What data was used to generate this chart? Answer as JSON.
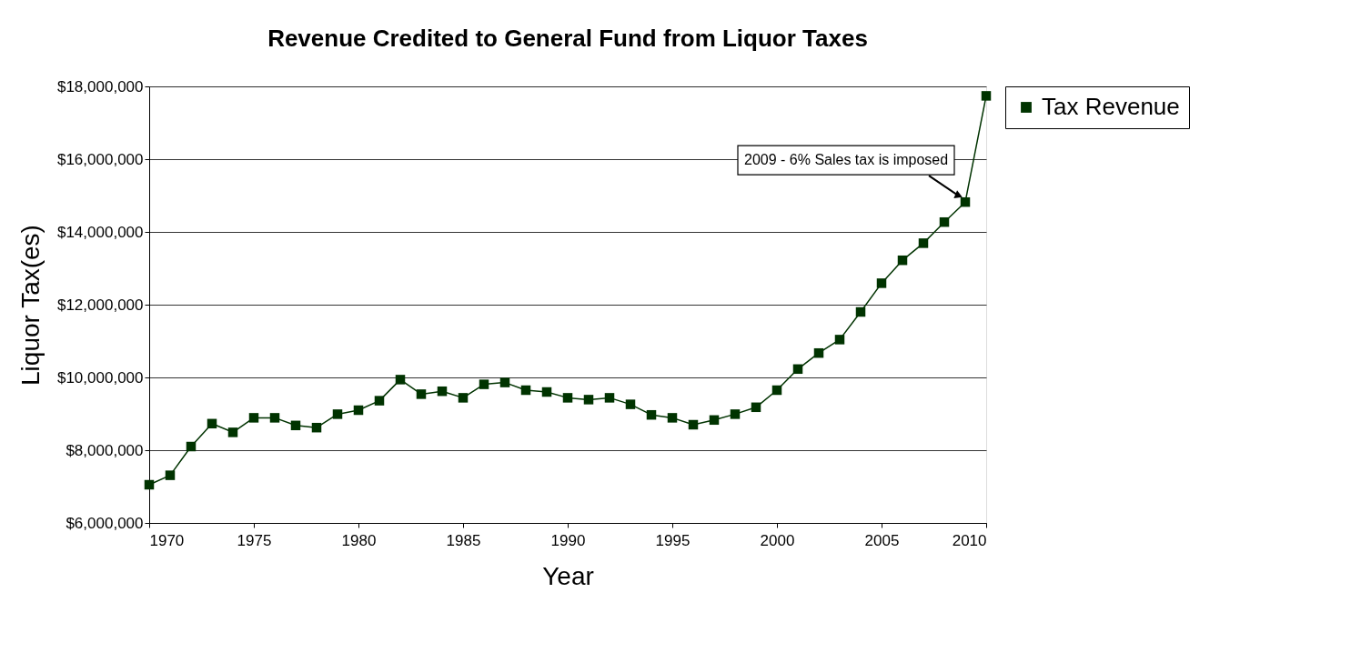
{
  "chart_data": {
    "type": "line",
    "title": "Revenue Credited to General Fund from Liquor Taxes",
    "xlabel": "Year",
    "ylabel": "Liquor Tax(es)",
    "x": [
      1970,
      1971,
      1972,
      1973,
      1974,
      1975,
      1976,
      1977,
      1978,
      1979,
      1980,
      1981,
      1982,
      1983,
      1984,
      1985,
      1986,
      1987,
      1988,
      1989,
      1990,
      1991,
      1992,
      1993,
      1994,
      1995,
      1996,
      1997,
      1998,
      1999,
      2000,
      2001,
      2002,
      2003,
      2004,
      2005,
      2006,
      2007,
      2008,
      2009,
      2010
    ],
    "series": [
      {
        "name": "Tax Revenue",
        "color": "#003300",
        "values": [
          7050000,
          7310000,
          8100000,
          8730000,
          8490000,
          8890000,
          8890000,
          8680000,
          8620000,
          8990000,
          9100000,
          9360000,
          9940000,
          9540000,
          9620000,
          9440000,
          9810000,
          9860000,
          9650000,
          9600000,
          9440000,
          9390000,
          9440000,
          9260000,
          8970000,
          8890000,
          8700000,
          8830000,
          8990000,
          9180000,
          9650000,
          10230000,
          10670000,
          11040000,
          11800000,
          12590000,
          13220000,
          13690000,
          14270000,
          14820000,
          17740000
        ]
      }
    ],
    "xlim": [
      1970,
      2010
    ],
    "xticks": [
      1970,
      1975,
      1980,
      1985,
      1990,
      1995,
      2000,
      2005,
      2010
    ],
    "ylim": [
      6000000,
      18000000
    ],
    "yticks": [
      {
        "value": 6000000,
        "label": "$6,000,000"
      },
      {
        "value": 8000000,
        "label": "$8,000,000"
      },
      {
        "value": 10000000,
        "label": "$10,000,000"
      },
      {
        "value": 12000000,
        "label": "$12,000,000"
      },
      {
        "value": 14000000,
        "label": "$14,000,000"
      },
      {
        "value": 16000000,
        "label": "$16,000,000"
      },
      {
        "value": 18000000,
        "label": "$18,000,000"
      }
    ],
    "annotations": [
      {
        "text": "2009 - 6% Sales tax is imposed",
        "x": 2009,
        "y": 14820000
      }
    ],
    "grid": "y",
    "legend": "right",
    "marker": "square",
    "line_style": "solid"
  }
}
